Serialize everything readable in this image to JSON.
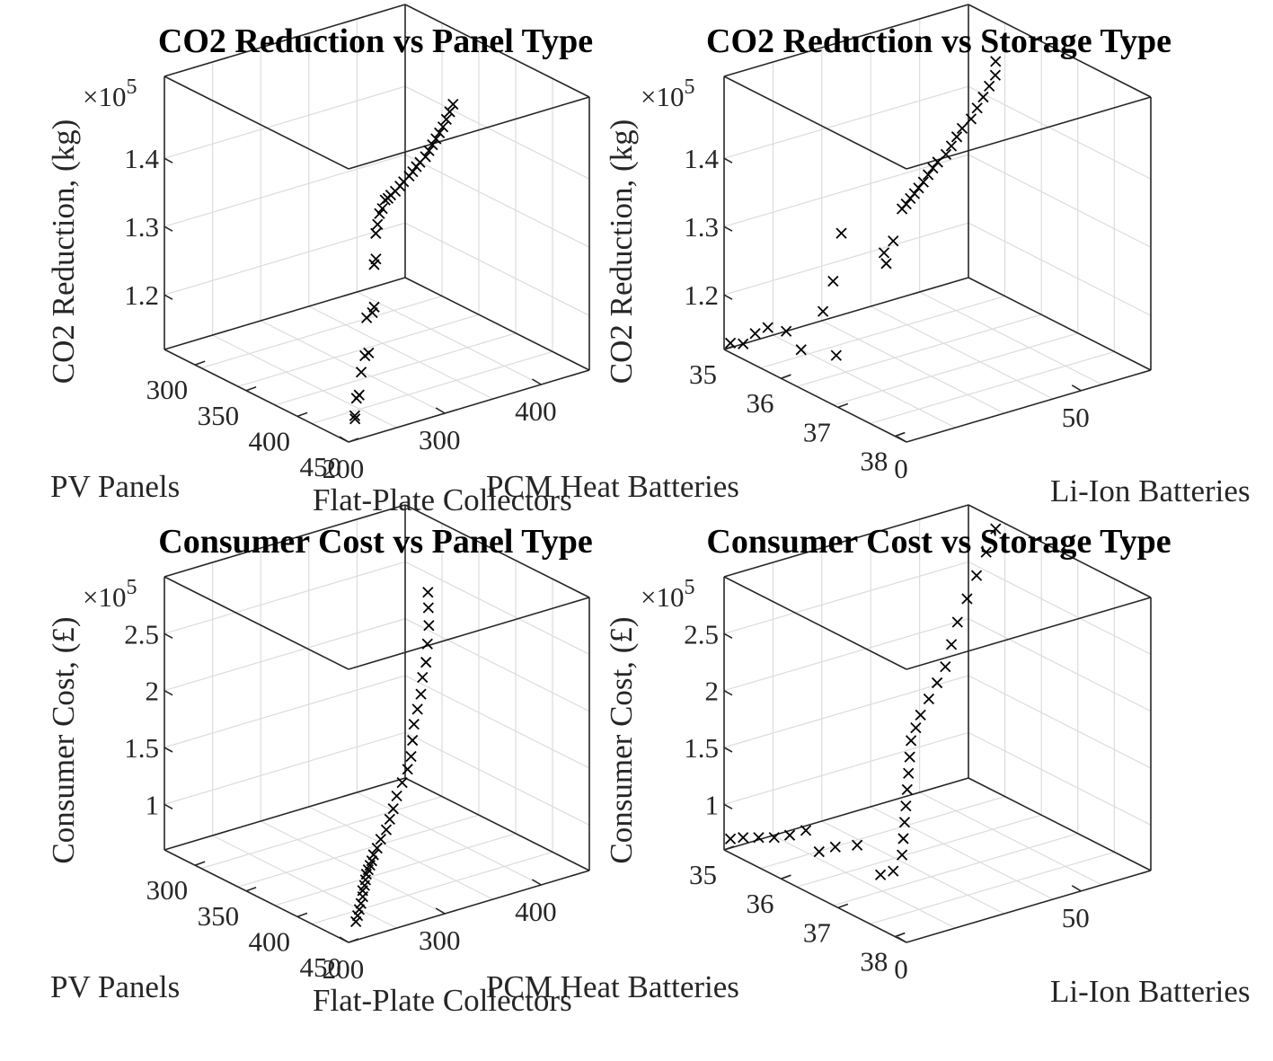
{
  "chart_data": [
    {
      "type": "scatter",
      "title": "CO2 Reduction vs Panel Type",
      "zlabel": "CO2 Reduction, (kg)",
      "zexp": "×10",
      "zexp_power": "5",
      "xlabel": "Flat-Plate Collectors",
      "ylabel": "PV Panels",
      "xticks": [
        "200",
        "300",
        "400"
      ],
      "yticks": [
        "300",
        "350",
        "400",
        "450"
      ],
      "zticks": [
        "1.2",
        "1.3",
        "1.4"
      ],
      "xlim": [
        200,
        450
      ],
      "ylim": [
        270,
        450
      ],
      "zlim": [
        1.12,
        1.52
      ],
      "points": [
        {
          "x": 212,
          "y": 445,
          "z": 1.145
        },
        {
          "x": 216,
          "y": 441,
          "z": 1.145
        },
        {
          "x": 222,
          "y": 437,
          "z": 1.165
        },
        {
          "x": 228,
          "y": 434,
          "z": 1.165
        },
        {
          "x": 228,
          "y": 436,
          "z": 1.2
        },
        {
          "x": 234,
          "y": 434,
          "z": 1.22
        },
        {
          "x": 240,
          "y": 432,
          "z": 1.22
        },
        {
          "x": 240,
          "y": 430,
          "z": 1.27
        },
        {
          "x": 246,
          "y": 430,
          "z": 1.275
        },
        {
          "x": 250,
          "y": 428,
          "z": 1.28
        },
        {
          "x": 252,
          "y": 426,
          "z": 1.34
        },
        {
          "x": 256,
          "y": 424,
          "z": 1.345
        },
        {
          "x": 258,
          "y": 422,
          "z": 1.38
        },
        {
          "x": 262,
          "y": 420,
          "z": 1.39
        },
        {
          "x": 264,
          "y": 420,
          "z": 1.405
        },
        {
          "x": 268,
          "y": 419,
          "z": 1.41
        },
        {
          "x": 272,
          "y": 418,
          "z": 1.42
        },
        {
          "x": 276,
          "y": 417,
          "z": 1.42
        },
        {
          "x": 282,
          "y": 414,
          "z": 1.42
        },
        {
          "x": 290,
          "y": 411,
          "z": 1.42
        },
        {
          "x": 298,
          "y": 408,
          "z": 1.422
        },
        {
          "x": 306,
          "y": 404,
          "z": 1.422
        },
        {
          "x": 316,
          "y": 400,
          "z": 1.423
        },
        {
          "x": 324,
          "y": 396,
          "z": 1.423
        },
        {
          "x": 332,
          "y": 392,
          "z": 1.424
        },
        {
          "x": 340,
          "y": 388,
          "z": 1.424
        },
        {
          "x": 350,
          "y": 384,
          "z": 1.425
        },
        {
          "x": 360,
          "y": 378,
          "z": 1.425
        },
        {
          "x": 370,
          "y": 372,
          "z": 1.425
        },
        {
          "x": 380,
          "y": 366,
          "z": 1.425
        },
        {
          "x": 390,
          "y": 360,
          "z": 1.425
        },
        {
          "x": 400,
          "y": 354,
          "z": 1.425
        },
        {
          "x": 412,
          "y": 346,
          "z": 1.425
        },
        {
          "x": 424,
          "y": 338,
          "z": 1.425
        },
        {
          "x": 436,
          "y": 330,
          "z": 1.425
        }
      ]
    },
    {
      "type": "scatter",
      "title": "CO2 Reduction vs Storage Type",
      "zlabel": "CO2 Reduction, (kg)",
      "zexp": "×10",
      "zexp_power": "5",
      "xlabel": "Li-Ion Batteries",
      "ylabel": "PCM Heat Batteries",
      "xticks": [
        "0",
        "50"
      ],
      "yticks": [
        "35",
        "36",
        "37",
        "38"
      ],
      "zticks": [
        "1.2",
        "1.3",
        "1.4"
      ],
      "xlim": [
        0,
        70
      ],
      "ylim": [
        35,
        38.2
      ],
      "zlim": [
        1.12,
        1.52
      ],
      "points": [
        {
          "x": 1,
          "y": 35.05,
          "z": 1.13
        },
        {
          "x": 3,
          "y": 35.15,
          "z": 1.13
        },
        {
          "x": 4,
          "y": 35.3,
          "z": 1.15
        },
        {
          "x": 6,
          "y": 35.4,
          "z": 1.16
        },
        {
          "x": 8,
          "y": 35.6,
          "z": 1.16
        },
        {
          "x": 9,
          "y": 35.8,
          "z": 1.14
        },
        {
          "x": 12,
          "y": 36.0,
          "z": 1.2
        },
        {
          "x": 6,
          "y": 36.6,
          "z": 1.17
        },
        {
          "x": 10,
          "y": 36.3,
          "z": 1.26
        },
        {
          "x": 14,
          "y": 36.2,
          "z": 1.32
        },
        {
          "x": 4,
          "y": 37.6,
          "z": 1.35
        },
        {
          "x": 5,
          "y": 37.5,
          "z": 1.36
        },
        {
          "x": 6,
          "y": 37.6,
          "z": 1.38
        },
        {
          "x": 2,
          "y": 38.0,
          "z": 1.45
        },
        {
          "x": 4,
          "y": 37.95,
          "z": 1.452
        },
        {
          "x": 6,
          "y": 37.9,
          "z": 1.455
        },
        {
          "x": 8,
          "y": 37.85,
          "z": 1.457
        },
        {
          "x": 10,
          "y": 37.8,
          "z": 1.46
        },
        {
          "x": 13,
          "y": 37.7,
          "z": 1.46
        },
        {
          "x": 16,
          "y": 37.6,
          "z": 1.462
        },
        {
          "x": 19,
          "y": 37.5,
          "z": 1.463
        },
        {
          "x": 22,
          "y": 37.4,
          "z": 1.463
        },
        {
          "x": 26,
          "y": 37.3,
          "z": 1.464
        },
        {
          "x": 30,
          "y": 37.15,
          "z": 1.464
        },
        {
          "x": 34,
          "y": 37.0,
          "z": 1.465
        },
        {
          "x": 38,
          "y": 36.85,
          "z": 1.465
        },
        {
          "x": 43,
          "y": 36.7,
          "z": 1.465
        },
        {
          "x": 48,
          "y": 36.5,
          "z": 1.465
        },
        {
          "x": 53,
          "y": 36.3,
          "z": 1.465
        },
        {
          "x": 58,
          "y": 36.1,
          "z": 1.465
        },
        {
          "x": 63,
          "y": 35.9,
          "z": 1.465
        },
        {
          "x": 68,
          "y": 35.6,
          "z": 1.465
        }
      ]
    },
    {
      "type": "scatter",
      "title": "Consumer Cost vs Panel Type",
      "zlabel": "Consumer Cost, (£)",
      "zexp": "×10",
      "zexp_power": "5",
      "xlabel": "Flat-Plate Collectors",
      "ylabel": "PV Panels",
      "xticks": [
        "200",
        "300",
        "400"
      ],
      "yticks": [
        "300",
        "350",
        "400",
        "450"
      ],
      "zticks": [
        "1",
        "1.5",
        "2",
        "2.5"
      ],
      "xlim": [
        200,
        450
      ],
      "ylim": [
        270,
        450
      ],
      "zlim": [
        0.6,
        3.0
      ],
      "points": [
        {
          "x": 214,
          "y": 444,
          "z": 0.72
        },
        {
          "x": 220,
          "y": 440,
          "z": 0.74
        },
        {
          "x": 226,
          "y": 436,
          "z": 0.76
        },
        {
          "x": 232,
          "y": 432,
          "z": 0.78
        },
        {
          "x": 236,
          "y": 430,
          "z": 0.82
        },
        {
          "x": 238,
          "y": 428,
          "z": 0.86
        },
        {
          "x": 240,
          "y": 428,
          "z": 0.9
        },
        {
          "x": 242,
          "y": 427,
          "z": 0.94
        },
        {
          "x": 244,
          "y": 426,
          "z": 0.98
        },
        {
          "x": 248,
          "y": 424,
          "z": 1.0
        },
        {
          "x": 252,
          "y": 422,
          "z": 1.02
        },
        {
          "x": 256,
          "y": 420,
          "z": 1.04
        },
        {
          "x": 262,
          "y": 416,
          "z": 1.06
        },
        {
          "x": 270,
          "y": 412,
          "z": 1.08
        },
        {
          "x": 278,
          "y": 408,
          "z": 1.12
        },
        {
          "x": 288,
          "y": 404,
          "z": 1.16
        },
        {
          "x": 298,
          "y": 398,
          "z": 1.2
        },
        {
          "x": 308,
          "y": 392,
          "z": 1.24
        },
        {
          "x": 318,
          "y": 386,
          "z": 1.3
        },
        {
          "x": 330,
          "y": 380,
          "z": 1.36
        },
        {
          "x": 342,
          "y": 374,
          "z": 1.42
        },
        {
          "x": 352,
          "y": 368,
          "z": 1.48
        },
        {
          "x": 362,
          "y": 360,
          "z": 1.56
        },
        {
          "x": 372,
          "y": 352,
          "z": 1.64
        },
        {
          "x": 382,
          "y": 346,
          "z": 1.72
        },
        {
          "x": 392,
          "y": 340,
          "z": 1.8
        },
        {
          "x": 400,
          "y": 334,
          "z": 1.9
        },
        {
          "x": 410,
          "y": 328,
          "z": 1.98
        },
        {
          "x": 420,
          "y": 320,
          "z": 2.08
        },
        {
          "x": 430,
          "y": 312,
          "z": 2.18
        },
        {
          "x": 438,
          "y": 304,
          "z": 2.28
        },
        {
          "x": 446,
          "y": 296,
          "z": 2.36
        }
      ]
    },
    {
      "type": "scatter",
      "title": "Consumer Cost vs Storage Type",
      "zlabel": "Consumer Cost, (£)",
      "zexp": "×10",
      "zexp_power": "5",
      "xlabel": "Li-Ion Batteries",
      "ylabel": "PCM Heat Batteries",
      "xticks": [
        "0",
        "50"
      ],
      "yticks": [
        "35",
        "36",
        "37",
        "38"
      ],
      "zticks": [
        "1",
        "1.5",
        "2",
        "2.5"
      ],
      "xlim": [
        0,
        70
      ],
      "ylim": [
        35,
        38.2
      ],
      "zlim": [
        0.6,
        3.0
      ],
      "points": [
        {
          "x": 1,
          "y": 35.05,
          "z": 0.7
        },
        {
          "x": 3,
          "y": 35.15,
          "z": 0.72
        },
        {
          "x": 5,
          "y": 35.3,
          "z": 0.74
        },
        {
          "x": 7,
          "y": 35.45,
          "z": 0.76
        },
        {
          "x": 9,
          "y": 35.6,
          "z": 0.8
        },
        {
          "x": 12,
          "y": 35.7,
          "z": 0.84
        },
        {
          "x": 6,
          "y": 36.3,
          "z": 0.86
        },
        {
          "x": 9,
          "y": 36.4,
          "z": 0.9
        },
        {
          "x": 12,
          "y": 36.6,
          "z": 0.94
        },
        {
          "x": 4,
          "y": 37.5,
          "z": 0.98
        },
        {
          "x": 6,
          "y": 37.6,
          "z": 1.02
        },
        {
          "x": 2,
          "y": 38.0,
          "z": 1.3
        },
        {
          "x": 4,
          "y": 37.9,
          "z": 1.4
        },
        {
          "x": 6,
          "y": 37.8,
          "z": 1.5
        },
        {
          "x": 8,
          "y": 37.7,
          "z": 1.6
        },
        {
          "x": 10,
          "y": 37.6,
          "z": 1.7
        },
        {
          "x": 12,
          "y": 37.5,
          "z": 1.8
        },
        {
          "x": 14,
          "y": 37.4,
          "z": 1.9
        },
        {
          "x": 16,
          "y": 37.3,
          "z": 2.0
        },
        {
          "x": 19,
          "y": 37.2,
          "z": 2.06
        },
        {
          "x": 22,
          "y": 37.1,
          "z": 2.12
        },
        {
          "x": 26,
          "y": 37.0,
          "z": 2.2
        },
        {
          "x": 30,
          "y": 36.9,
          "z": 2.28
        },
        {
          "x": 34,
          "y": 36.8,
          "z": 2.36
        },
        {
          "x": 39,
          "y": 36.6,
          "z": 2.46
        },
        {
          "x": 44,
          "y": 36.4,
          "z": 2.56
        },
        {
          "x": 50,
          "y": 36.2,
          "z": 2.66
        },
        {
          "x": 56,
          "y": 36.0,
          "z": 2.76
        },
        {
          "x": 62,
          "y": 35.8,
          "z": 2.86
        },
        {
          "x": 68,
          "y": 35.6,
          "z": 2.96
        }
      ]
    }
  ]
}
